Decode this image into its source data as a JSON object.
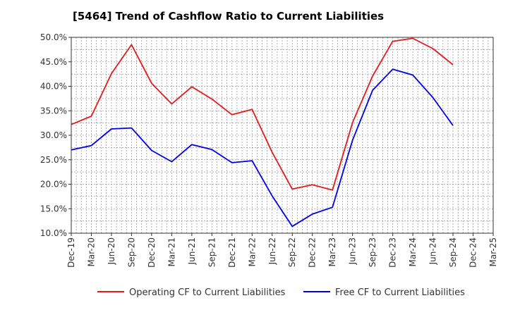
{
  "chart_data": {
    "type": "line",
    "title": "[5464]  Trend of Cashflow Ratio to Current Liabilities",
    "xlabel": "",
    "ylabel": "",
    "ylim": [
      10,
      50
    ],
    "y_ticks": [
      "10.0%",
      "15.0%",
      "20.0%",
      "25.0%",
      "30.0%",
      "35.0%",
      "40.0%",
      "45.0%",
      "50.0%"
    ],
    "y_tick_values": [
      10,
      15,
      20,
      25,
      30,
      35,
      40,
      45,
      50
    ],
    "categories": [
      "Dec-19",
      "Mar-20",
      "Jun-20",
      "Sep-20",
      "Dec-20",
      "Mar-21",
      "Jun-21",
      "Sep-21",
      "Dec-21",
      "Mar-22",
      "Jun-22",
      "Sep-22",
      "Dec-22",
      "Mar-23",
      "Jun-23",
      "Sep-23",
      "Dec-23",
      "Mar-24",
      "Jun-24",
      "Sep-24",
      "Dec-24",
      "Mar-25"
    ],
    "grid": true,
    "legend_position": "bottom",
    "series": [
      {
        "name": "Operating CF to Current Liabilities",
        "color": "#e41a1c",
        "values": [
          32.2,
          33.9,
          42.6,
          48.5,
          40.6,
          36.4,
          39.9,
          37.4,
          34.2,
          35.3,
          26.5,
          19.0,
          19.9,
          18.8,
          32.6,
          42.1,
          49.2,
          49.8,
          47.7,
          44.4,
          null,
          null
        ]
      },
      {
        "name": "Free CF to Current Liabilities",
        "color": "#0000ee",
        "values": [
          27.0,
          27.9,
          31.3,
          31.5,
          26.9,
          24.6,
          28.1,
          27.1,
          24.4,
          24.8,
          17.6,
          11.4,
          13.9,
          15.3,
          29.0,
          39.2,
          43.5,
          42.3,
          37.7,
          32.0,
          null,
          null
        ]
      }
    ]
  }
}
